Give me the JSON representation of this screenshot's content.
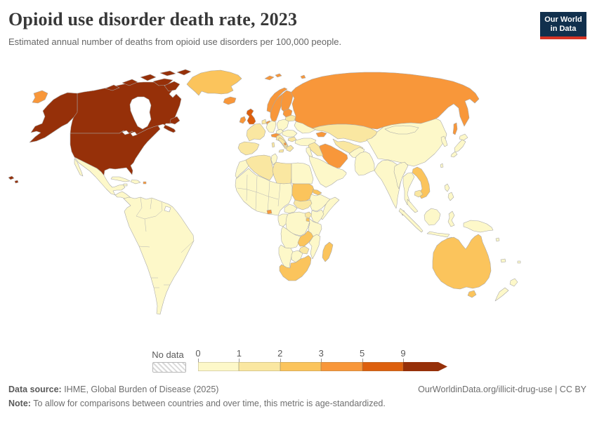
{
  "header": {
    "title": "Opioid use disorder death rate, 2023",
    "subtitle": "Estimated annual number of deaths from opioid use disorders per 100,000 people.",
    "logo_line1": "Our World",
    "logo_line2": "in Data",
    "logo_bg": "#11304d",
    "logo_accent": "#d63425"
  },
  "legend": {
    "no_data_label": "No data",
    "tick_labels": [
      "0",
      "1",
      "2",
      "3",
      "5",
      "9"
    ],
    "bin_colors": [
      "#fdf8c9",
      "#fae7a1",
      "#fbc45c",
      "#f8973a",
      "#dd5f0d",
      "#963009"
    ],
    "no_data_color": "#ffffff"
  },
  "footer": {
    "source_label": "Data source:",
    "source_text": " IHME, Global Burden of Disease (2025)",
    "link_text": "OurWorldinData.org/illicit-drug-use | CC BY",
    "note_label": "Note:",
    "note_text": " To allow for comparisons between countries and over time, this metric is age-standardized."
  },
  "chart_data": {
    "type": "choropleth",
    "title": "Opioid use disorder death rate, 2023",
    "unit": "deaths per 100,000 people (age-standardized)",
    "year": 2023,
    "bin_edges": [
      0,
      1,
      2,
      3,
      5,
      9
    ],
    "bin_labels": [
      "0-1",
      "1-2",
      "2-3",
      "3-5",
      "5-9",
      "9+"
    ],
    "legend_position": "bottom",
    "regions": [
      {
        "name": "United States",
        "value": "9+"
      },
      {
        "name": "Canada",
        "value": "9+"
      },
      {
        "name": "United Kingdom",
        "value": "5-9"
      },
      {
        "name": "Russia",
        "value": "3-5"
      },
      {
        "name": "Norway",
        "value": "3-5"
      },
      {
        "name": "Sweden",
        "value": "3-5"
      },
      {
        "name": "Finland",
        "value": "3-5"
      },
      {
        "name": "Denmark",
        "value": "3-5"
      },
      {
        "name": "Iceland",
        "value": "3-5"
      },
      {
        "name": "Ireland",
        "value": "3-5"
      },
      {
        "name": "Baltic states",
        "value": "3-5"
      },
      {
        "name": "Iran",
        "value": "3-5"
      },
      {
        "name": "Azerbaijan",
        "value": "3-5"
      },
      {
        "name": "Bangladesh",
        "value": "3-5"
      },
      {
        "name": "Puerto Rico",
        "value": "3-5"
      },
      {
        "name": "Australia",
        "value": "2-3"
      },
      {
        "name": "Greenland",
        "value": "2-3"
      },
      {
        "name": "Sudan",
        "value": "2-3"
      },
      {
        "name": "Zambia",
        "value": "2-3"
      },
      {
        "name": "South Africa",
        "value": "2-3"
      },
      {
        "name": "Madagascar",
        "value": "2-3"
      },
      {
        "name": "Vietnam",
        "value": "2-3"
      },
      {
        "name": "Sri Lanka",
        "value": "2-3"
      },
      {
        "name": "Kazakhstan",
        "value": "1-2"
      },
      {
        "name": "France",
        "value": "1-2"
      },
      {
        "name": "Spain",
        "value": "1-2"
      },
      {
        "name": "Italy",
        "value": "1-2"
      },
      {
        "name": "Algeria",
        "value": "1-2"
      },
      {
        "name": "Libya",
        "value": "1-2"
      },
      {
        "name": "Iraq and Syria",
        "value": "1-2"
      },
      {
        "name": "Most of Africa, Asia and Latin America",
        "value": "0-1"
      },
      {
        "name": "French Guiana",
        "value": "No data"
      }
    ]
  },
  "map": {
    "fills": {
      "usa": 5,
      "canada": 5,
      "alaska": 5,
      "newfoundland": 5,
      "arctic-island-a": 5,
      "arctic-island-b": 5,
      "arctic-island-c": 5,
      "arctic-island-d": 5,
      "arctic-island-e": 5,
      "arctic-island-f": 5,
      "arctic-island-g": 5,
      "hawaii-a": 5,
      "hawaii-b": 5,
      "uk": 4,
      "chukotka": 3,
      "russia": 3,
      "novaya-zemlya": 3,
      "svalbard-a": 3,
      "svalbard-b": 3,
      "franz-josef": 3,
      "sakhalin": 3,
      "iceland": 3,
      "norway": 3,
      "sweden": 3,
      "finland": 3,
      "denmark": 3,
      "ireland": 3,
      "baltics": 3,
      "alps-austria": 3,
      "albania": 3,
      "azerbaijan": 3,
      "iran": 3,
      "bangladesh": 3,
      "puerto-rico": 3,
      "ghana": 3,
      "greenland": 2,
      "australia": 2,
      "tasmania": 2,
      "sudan": 2,
      "eritrea": 2,
      "south-africa": 2,
      "zambia": 2,
      "madagascar": 2,
      "vietnam": 2,
      "sri-lanka": 2,
      "rwanda": 2,
      "france": 1,
      "benelux": 1,
      "iberia": 1,
      "italy": 1,
      "sicily": 1,
      "sardinia": 1,
      "balkans": 1,
      "greece": 1,
      "bulgaria": 1,
      "belarus": 1,
      "algeria": 1,
      "libya": 1,
      "iraq-syria": 1,
      "kazakhstan": 1,
      "central-asia": 1,
      "south-sudan": 1,
      "uganda": 1,
      "zimbabwe": 1,
      "cambodia": 1,
      "mexico": 0,
      "baja": 0,
      "central-america": 0,
      "cuba": 0,
      "hispaniola": 0,
      "jamaica": 0,
      "south-america": 0,
      "morocco": 0,
      "sahel-west-africa": 0,
      "tunisia": 0,
      "egypt": 0,
      "ethiopia": 0,
      "somalia": 0,
      "car": 0,
      "gabon-congo": 0,
      "drc": 0,
      "kenya": 0,
      "tanzania": 0,
      "angola": 0,
      "mozambique": 0,
      "namibia": 0,
      "botswana": 0,
      "israel-jordan": 0,
      "saudi-arabia": 0,
      "afghanistan": 0,
      "pakistan": 0,
      "india": 0,
      "china": 0,
      "mongolia": 0,
      "korea": 0,
      "japan-hokkaido": 0,
      "japan-honshu": 0,
      "japan-kyushu": 0,
      "taiwan": 0,
      "myanmar": 0,
      "thailand": 0,
      "malay-peninsula": 0,
      "sumatra": 0,
      "java": 0,
      "borneo": 0,
      "sulawesi": 0,
      "philippines-a": 0,
      "philippines-b": 0,
      "new-guinea": 0,
      "timor": 0,
      "nz-north": 0,
      "nz-south": 0,
      "new-caledonia": 0,
      "fiji": 0,
      "solomon": 0,
      "germany": 0,
      "poland": 0,
      "czech": 0,
      "hungary-romania": 0,
      "ukraine": 0,
      "turkey": 0,
      "french-guiana": "n",
      "hudson-bay": "w",
      "great-lake-a": "w",
      "great-lake-b": "w"
    }
  }
}
